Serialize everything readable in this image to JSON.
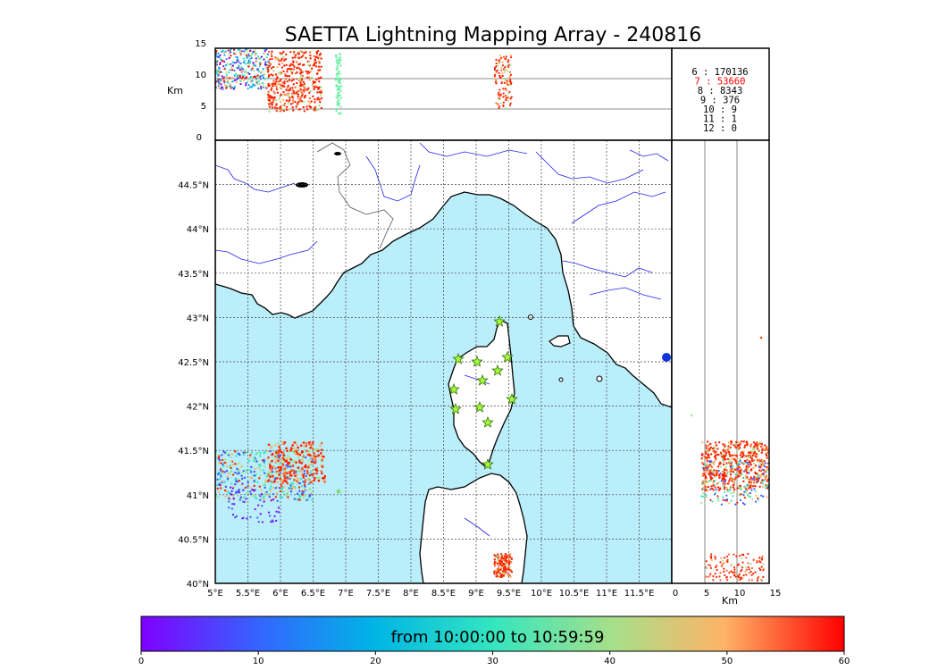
{
  "title": "SAETTA Lightning Mapping Array - 240816",
  "unit_label": "Km",
  "alt_ticks": [
    "0",
    "5",
    "10",
    "15"
  ],
  "lon_ticks": [
    "5°E",
    "5.5°E",
    "6°E",
    "6.5°E",
    "7°E",
    "7.5°E",
    "8°E",
    "8.5°E",
    "9°E",
    "9.5°E",
    "10°E",
    "10.5°E",
    "11°E",
    "11.5°E"
  ],
  "lat_ticks": [
    "40°N",
    "40.5°N",
    "41°N",
    "41.5°N",
    "42°N",
    "42.5°N",
    "43°N",
    "43.5°N",
    "44°N",
    "44.5°N"
  ],
  "stats": [
    {
      "stations": "6",
      "count": "170136",
      "color": "#000000"
    },
    {
      "stations": "7",
      "count": "53660",
      "color": "#ff0000"
    },
    {
      "stations": "8",
      "count": "8343",
      "color": "#000000"
    },
    {
      "stations": "9",
      "count": "376",
      "color": "#000000"
    },
    {
      "stations": "10",
      "count": "9",
      "color": "#000000"
    },
    {
      "stations": "11",
      "count": "1",
      "color": "#000000"
    },
    {
      "stations": "12",
      "count": "0",
      "color": "#000000"
    }
  ],
  "colorbar": {
    "label": "from 10:00:00 to 10:59:59",
    "ticks": [
      "0",
      "10",
      "20",
      "30",
      "40",
      "50",
      "60"
    ],
    "colors": [
      "#7f00ff",
      "#3366ff",
      "#00b4e6",
      "#33e6c0",
      "#a6e08a",
      "#ffb366",
      "#ff0000"
    ]
  },
  "colors": {
    "sea": "#b9eefa",
    "land": "#ffffff",
    "rivers": "#2222ee",
    "stations": "#9eff3a"
  }
}
